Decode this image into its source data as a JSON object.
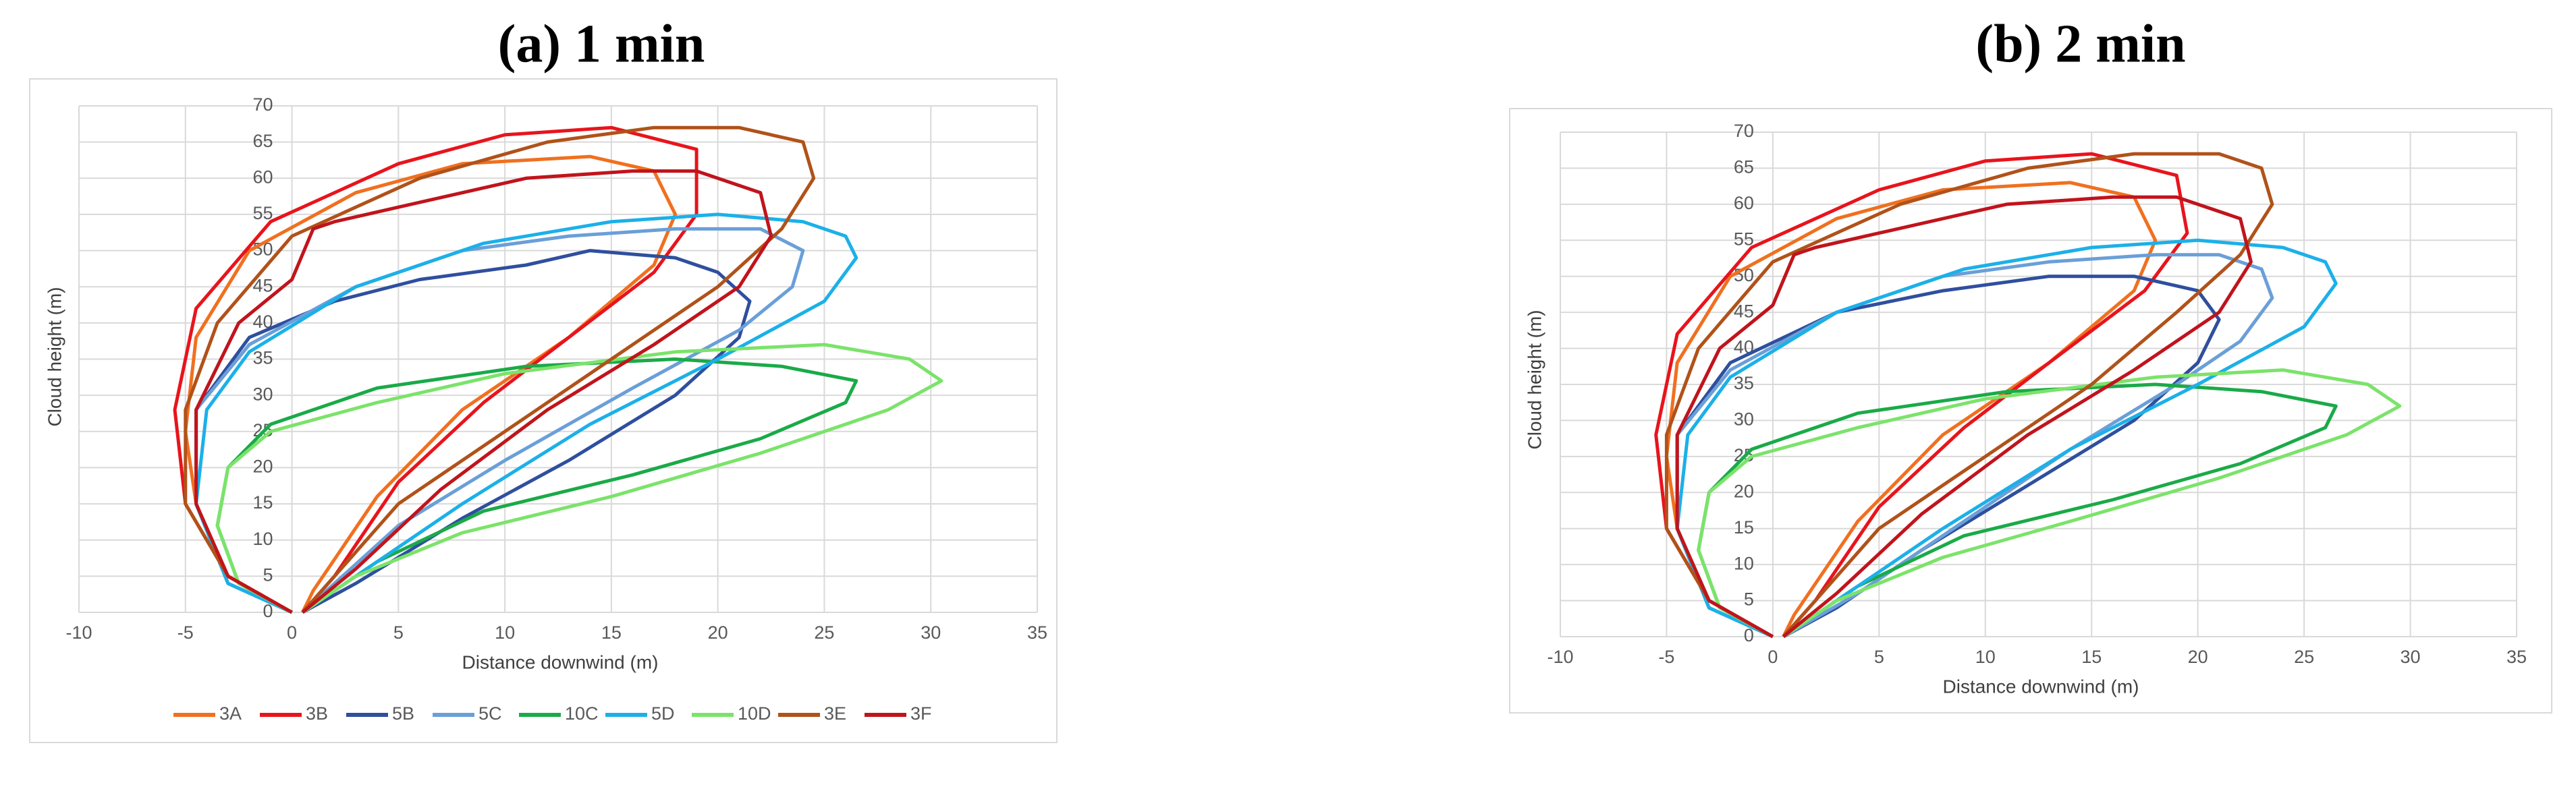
{
  "chart_data": [
    {
      "type": "line",
      "title": "(a)  1 min",
      "x_label": "Distance downwind (m)",
      "y_label": "Cloud height (m)",
      "xlim": [
        -10,
        35
      ],
      "xticks": [
        -10,
        -5,
        0,
        5,
        10,
        15,
        20,
        25,
        30,
        35
      ],
      "ylim": [
        0,
        70
      ],
      "yticks": [
        0,
        5,
        10,
        15,
        20,
        25,
        30,
        35,
        40,
        45,
        50,
        55,
        60,
        65,
        70
      ],
      "grid": true,
      "legend": "bottom",
      "series": [
        {
          "name": "3A",
          "color": "#f07020",
          "x": [
            0,
            -3,
            -4.5,
            -5,
            -4.5,
            -2,
            3,
            8,
            14,
            17,
            18,
            17,
            13,
            8,
            4,
            1,
            0.5
          ],
          "values": [
            0,
            5,
            15,
            25,
            38,
            50,
            58,
            62,
            63,
            61,
            55,
            48,
            38,
            28,
            16,
            3,
            0
          ]
        },
        {
          "name": "3B",
          "color": "#e8141c",
          "x": [
            0,
            -3,
            -5,
            -5.5,
            -4.5,
            -1,
            5,
            10,
            15,
            19,
            19,
            17,
            13,
            9,
            5,
            2,
            0.5
          ],
          "values": [
            0,
            5,
            15,
            28,
            42,
            54,
            62,
            66,
            67,
            64,
            55,
            47,
            38,
            29,
            18,
            5,
            0
          ]
        },
        {
          "name": "5B",
          "color": "#2f4f9e",
          "x": [
            0,
            -3,
            -4.5,
            -4.5,
            -2,
            2,
            6,
            11,
            14,
            18,
            20,
            21.5,
            21,
            18,
            13,
            8,
            3,
            0.5
          ],
          "values": [
            0,
            4,
            15,
            28,
            38,
            43,
            46,
            48,
            50,
            49,
            47,
            43,
            38,
            30,
            21,
            13,
            4,
            0
          ]
        },
        {
          "name": "5C",
          "color": "#6a9fd8",
          "x": [
            0,
            -3,
            -4.5,
            -4.5,
            -2,
            3,
            8,
            13,
            18,
            22,
            24,
            23.5,
            21,
            16,
            10,
            5,
            2,
            0.5
          ],
          "values": [
            0,
            4,
            15,
            28,
            37,
            45,
            50,
            52,
            53,
            53,
            50,
            45,
            39,
            31,
            21,
            12,
            4,
            0
          ]
        },
        {
          "name": "10C",
          "color": "#1aaa48",
          "x": [
            0,
            -2.5,
            -3.5,
            -3,
            -1,
            4,
            11,
            18,
            23,
            26.5,
            26,
            22,
            16,
            9,
            4,
            1,
            0.5
          ],
          "values": [
            0,
            4,
            12,
            20,
            26,
            31,
            34,
            35,
            34,
            32,
            29,
            24,
            19,
            14,
            7,
            1,
            0
          ]
        },
        {
          "name": "5D",
          "color": "#1cb0e8",
          "x": [
            0,
            -3,
            -4.5,
            -4,
            -2,
            3,
            9,
            15,
            20,
            24,
            26,
            26.5,
            25,
            20,
            14,
            8,
            3,
            0.5
          ],
          "values": [
            0,
            4,
            15,
            28,
            36,
            45,
            51,
            54,
            55,
            54,
            52,
            49,
            43,
            35,
            26,
            15,
            5,
            0
          ]
        },
        {
          "name": "10D",
          "color": "#7be36a",
          "x": [
            0,
            -2.5,
            -3.5,
            -3,
            -1,
            4,
            10,
            18,
            25,
            29,
            30.5,
            28,
            22,
            15,
            8,
            3,
            0.5
          ],
          "values": [
            0,
            4,
            12,
            20,
            25,
            29,
            33,
            36,
            37,
            35,
            32,
            28,
            22,
            16,
            11,
            5,
            0
          ]
        },
        {
          "name": "3E",
          "color": "#b0521a",
          "x": [
            0,
            -3,
            -5,
            -5,
            -3.5,
            0,
            6,
            12,
            17,
            21,
            24,
            24.5,
            23,
            20,
            15,
            10,
            5,
            2,
            0.5
          ],
          "values": [
            0,
            5,
            15,
            28,
            40,
            52,
            60,
            65,
            67,
            67,
            65,
            60,
            53,
            45,
            35,
            25,
            15,
            5,
            0
          ]
        },
        {
          "name": "3F",
          "color": "#c0141c",
          "x": [
            0,
            -3,
            -4.5,
            -4.5,
            -2.5,
            0,
            1,
            2,
            5,
            11,
            16,
            19,
            22,
            22.5,
            21,
            17,
            12,
            7,
            3,
            0.5
          ],
          "values": [
            0,
            5,
            15,
            28,
            40,
            46,
            53,
            54,
            56,
            60,
            61,
            61,
            58,
            52,
            45,
            37,
            28,
            17,
            6,
            0
          ]
        }
      ]
    },
    {
      "type": "line",
      "title": "(b)  2 min",
      "x_label": "Distance downwind (m)",
      "y_label": "Cloud height (m)",
      "xlim": [
        -10,
        35
      ],
      "xticks": [
        -10,
        -5,
        0,
        5,
        10,
        15,
        20,
        25,
        30,
        35
      ],
      "ylim": [
        0,
        70
      ],
      "yticks": [
        0,
        5,
        10,
        15,
        20,
        25,
        30,
        35,
        40,
        45,
        50,
        55,
        60,
        65,
        70
      ],
      "grid": true,
      "series": [
        {
          "color": "#f07020",
          "x": [
            0,
            -3,
            -4.5,
            -5,
            -4.5,
            -2,
            3,
            8,
            14,
            17,
            18,
            17,
            13,
            8,
            4,
            1,
            0.5
          ],
          "values": [
            0,
            5,
            15,
            25,
            38,
            50,
            58,
            62,
            63,
            61,
            55,
            48,
            38,
            28,
            16,
            3,
            0
          ]
        },
        {
          "color": "#e8141c",
          "x": [
            0,
            -3,
            -5,
            -5.5,
            -4.5,
            -1,
            5,
            10,
            15,
            19,
            19.5,
            17.5,
            13,
            9,
            5,
            2,
            0.5
          ],
          "values": [
            0,
            5,
            15,
            28,
            42,
            54,
            62,
            66,
            67,
            64,
            56,
            48,
            38,
            29,
            18,
            5,
            0
          ]
        },
        {
          "color": "#2f4f9e",
          "x": [
            0,
            -3,
            -4.5,
            -4.5,
            -2,
            3,
            8,
            13,
            17,
            20,
            21,
            20,
            17,
            12,
            7,
            3,
            0.5
          ],
          "values": [
            0,
            4,
            15,
            28,
            38,
            45,
            48,
            50,
            50,
            48,
            44,
            38,
            30,
            21,
            12,
            4,
            0
          ]
        },
        {
          "color": "#6a9fd8",
          "x": [
            0,
            -3,
            -4.5,
            -4.5,
            -2,
            3,
            8,
            13,
            18,
            21,
            23,
            23.5,
            22,
            19,
            14,
            9,
            4,
            0.5
          ],
          "values": [
            0,
            4,
            15,
            28,
            37,
            45,
            50,
            52,
            53,
            53,
            51,
            47,
            41,
            35,
            26,
            16,
            6,
            0
          ]
        },
        {
          "color": "#1aaa48",
          "x": [
            0,
            -2.5,
            -3.5,
            -3,
            -1,
            4,
            11,
            18,
            23,
            26.5,
            26,
            22,
            16,
            9,
            4,
            1,
            0.5
          ],
          "values": [
            0,
            4,
            12,
            20,
            26,
            31,
            34,
            35,
            34,
            32,
            29,
            24,
            19,
            14,
            7,
            1,
            0
          ]
        },
        {
          "color": "#1cb0e8",
          "x": [
            0,
            -3,
            -4.5,
            -4,
            -2,
            3,
            9,
            15,
            20,
            24,
            26,
            26.5,
            25,
            20,
            14,
            8,
            3,
            0.5
          ],
          "values": [
            0,
            4,
            15,
            28,
            36,
            45,
            51,
            54,
            55,
            54,
            52,
            49,
            43,
            35,
            26,
            15,
            5,
            0
          ]
        },
        {
          "color": "#7be36a",
          "x": [
            0,
            -2.5,
            -3.5,
            -3,
            -1,
            4,
            10,
            18,
            24,
            28,
            29.5,
            27,
            21,
            14,
            8,
            3,
            0.5
          ],
          "values": [
            0,
            4,
            12,
            20,
            25,
            29,
            33,
            36,
            37,
            35,
            32,
            28,
            22,
            16,
            11,
            5,
            0
          ]
        },
        {
          "color": "#b0521a",
          "x": [
            0,
            -3,
            -5,
            -5,
            -3.5,
            0,
            6,
            12,
            17,
            21,
            23,
            23.5,
            22,
            19,
            15,
            10,
            5,
            2,
            0.5
          ],
          "values": [
            0,
            5,
            15,
            28,
            40,
            52,
            60,
            65,
            67,
            67,
            65,
            60,
            53,
            45,
            35,
            25,
            15,
            5,
            0
          ]
        },
        {
          "color": "#c0141c",
          "x": [
            0,
            -3,
            -4.5,
            -4.5,
            -2.5,
            0,
            1,
            2,
            5,
            11,
            16,
            19,
            22,
            22.5,
            21,
            17,
            12,
            7,
            3,
            0.5
          ],
          "values": [
            0,
            5,
            15,
            28,
            40,
            46,
            53,
            54,
            56,
            60,
            61,
            61,
            58,
            52,
            45,
            37,
            28,
            17,
            6,
            0
          ]
        }
      ]
    }
  ]
}
